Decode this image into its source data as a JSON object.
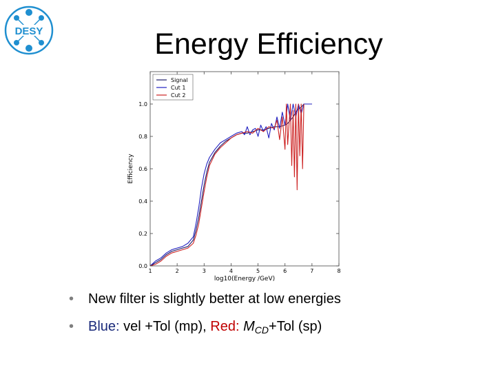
{
  "slide": {
    "title": "Energy Efficiency"
  },
  "logo": {
    "text": "DESY",
    "color": "#1f8fd0"
  },
  "bullets": [
    {
      "text": "New filter is slightly better at low energies"
    },
    {
      "parts": {
        "blue_label": "Blue:",
        "blue_desc": " vel +Tol (mp), ",
        "red_label": "Red:",
        "space": " ",
        "m_main": "M",
        "m_sub": "CD",
        "m_rest": "+Tol (sp)"
      }
    }
  ],
  "colors": {
    "blue_text": "#1a2a7a",
    "red_text": "#c00000",
    "bullet": "#7f7f7f"
  },
  "chart_data": {
    "type": "line",
    "title": "",
    "xlabel": "log10(Energy /GeV)",
    "ylabel": "Efficiency",
    "xlim": [
      1,
      8
    ],
    "ylim": [
      0,
      1.2
    ],
    "x_ticks": [
      1,
      2,
      3,
      4,
      5,
      6,
      7,
      8
    ],
    "y_ticks": [
      0.0,
      0.2,
      0.4,
      0.6,
      0.8,
      1.0
    ],
    "x_tick_labels": [
      "1",
      "2",
      "3",
      "4",
      "5",
      "6",
      "7",
      "8"
    ],
    "y_tick_labels": [
      "0.0",
      "0.2",
      "0.4",
      "0.6",
      "0.8",
      "1.0"
    ],
    "legend_position": "top-left",
    "series": [
      {
        "name": "Signal",
        "color": "#1a1a66",
        "x": [
          1.0,
          1.2,
          1.4,
          1.6,
          1.8,
          2.0,
          2.2,
          2.4,
          2.6,
          2.7,
          2.8,
          2.9,
          3.0,
          3.1,
          3.2,
          3.4,
          3.6,
          3.8,
          4.0,
          4.2,
          4.4,
          4.6,
          4.8,
          5.0,
          5.2,
          5.4,
          5.6,
          5.8,
          6.0,
          6.1,
          6.2,
          6.3,
          6.4,
          6.5,
          6.6,
          6.7,
          6.8,
          6.9,
          7.0
        ],
        "y": [
          0.0,
          0.02,
          0.04,
          0.07,
          0.09,
          0.1,
          0.11,
          0.12,
          0.16,
          0.22,
          0.3,
          0.4,
          0.5,
          0.58,
          0.64,
          0.7,
          0.74,
          0.77,
          0.79,
          0.81,
          0.82,
          0.82,
          0.83,
          0.84,
          0.84,
          0.85,
          0.86,
          0.86,
          0.87,
          0.88,
          0.9,
          0.92,
          0.95,
          0.97,
          0.98,
          1.0,
          1.0,
          1.0,
          1.0
        ]
      },
      {
        "name": "Cut 1",
        "color": "#2020c0",
        "x": [
          1.0,
          1.2,
          1.4,
          1.6,
          1.8,
          2.0,
          2.2,
          2.4,
          2.6,
          2.7,
          2.8,
          2.9,
          3.0,
          3.1,
          3.2,
          3.4,
          3.6,
          3.8,
          4.0,
          4.2,
          4.4,
          4.5,
          4.6,
          4.7,
          4.8,
          4.9,
          5.0,
          5.1,
          5.2,
          5.3,
          5.4,
          5.5,
          5.6,
          5.7,
          5.8,
          5.9,
          6.0,
          6.1,
          6.2,
          6.3,
          6.4,
          6.5,
          6.6,
          6.7,
          6.8,
          6.9,
          7.0
        ],
        "y": [
          0.0,
          0.03,
          0.05,
          0.08,
          0.1,
          0.11,
          0.12,
          0.14,
          0.18,
          0.26,
          0.36,
          0.48,
          0.57,
          0.63,
          0.67,
          0.72,
          0.76,
          0.78,
          0.8,
          0.82,
          0.83,
          0.81,
          0.86,
          0.81,
          0.84,
          0.85,
          0.8,
          0.87,
          0.83,
          0.86,
          0.79,
          0.88,
          0.84,
          0.92,
          0.85,
          0.95,
          0.87,
          1.0,
          0.9,
          1.0,
          0.92,
          1.0,
          0.94,
          1.0,
          1.0,
          1.0,
          1.0
        ]
      },
      {
        "name": "Cut 2",
        "color": "#cc2020",
        "x": [
          1.0,
          1.2,
          1.4,
          1.6,
          1.8,
          2.0,
          2.2,
          2.4,
          2.6,
          2.7,
          2.8,
          2.9,
          3.0,
          3.1,
          3.2,
          3.4,
          3.6,
          3.8,
          4.0,
          4.2,
          4.4,
          4.6,
          4.8,
          5.0,
          5.2,
          5.4,
          5.6,
          5.7,
          5.8,
          5.9,
          6.0,
          6.05,
          6.1,
          6.2,
          6.25,
          6.3,
          6.35,
          6.4,
          6.45,
          6.5,
          6.55,
          6.6,
          6.65,
          6.7
        ],
        "y": [
          0.0,
          0.01,
          0.03,
          0.06,
          0.08,
          0.09,
          0.1,
          0.11,
          0.14,
          0.19,
          0.26,
          0.36,
          0.46,
          0.55,
          0.62,
          0.69,
          0.73,
          0.76,
          0.79,
          0.81,
          0.82,
          0.83,
          0.82,
          0.85,
          0.83,
          0.86,
          0.85,
          0.9,
          0.78,
          0.92,
          0.72,
          1.0,
          0.75,
          1.0,
          0.62,
          0.96,
          0.55,
          1.0,
          0.47,
          1.0,
          0.68,
          1.0,
          0.6,
          1.0
        ]
      }
    ]
  }
}
